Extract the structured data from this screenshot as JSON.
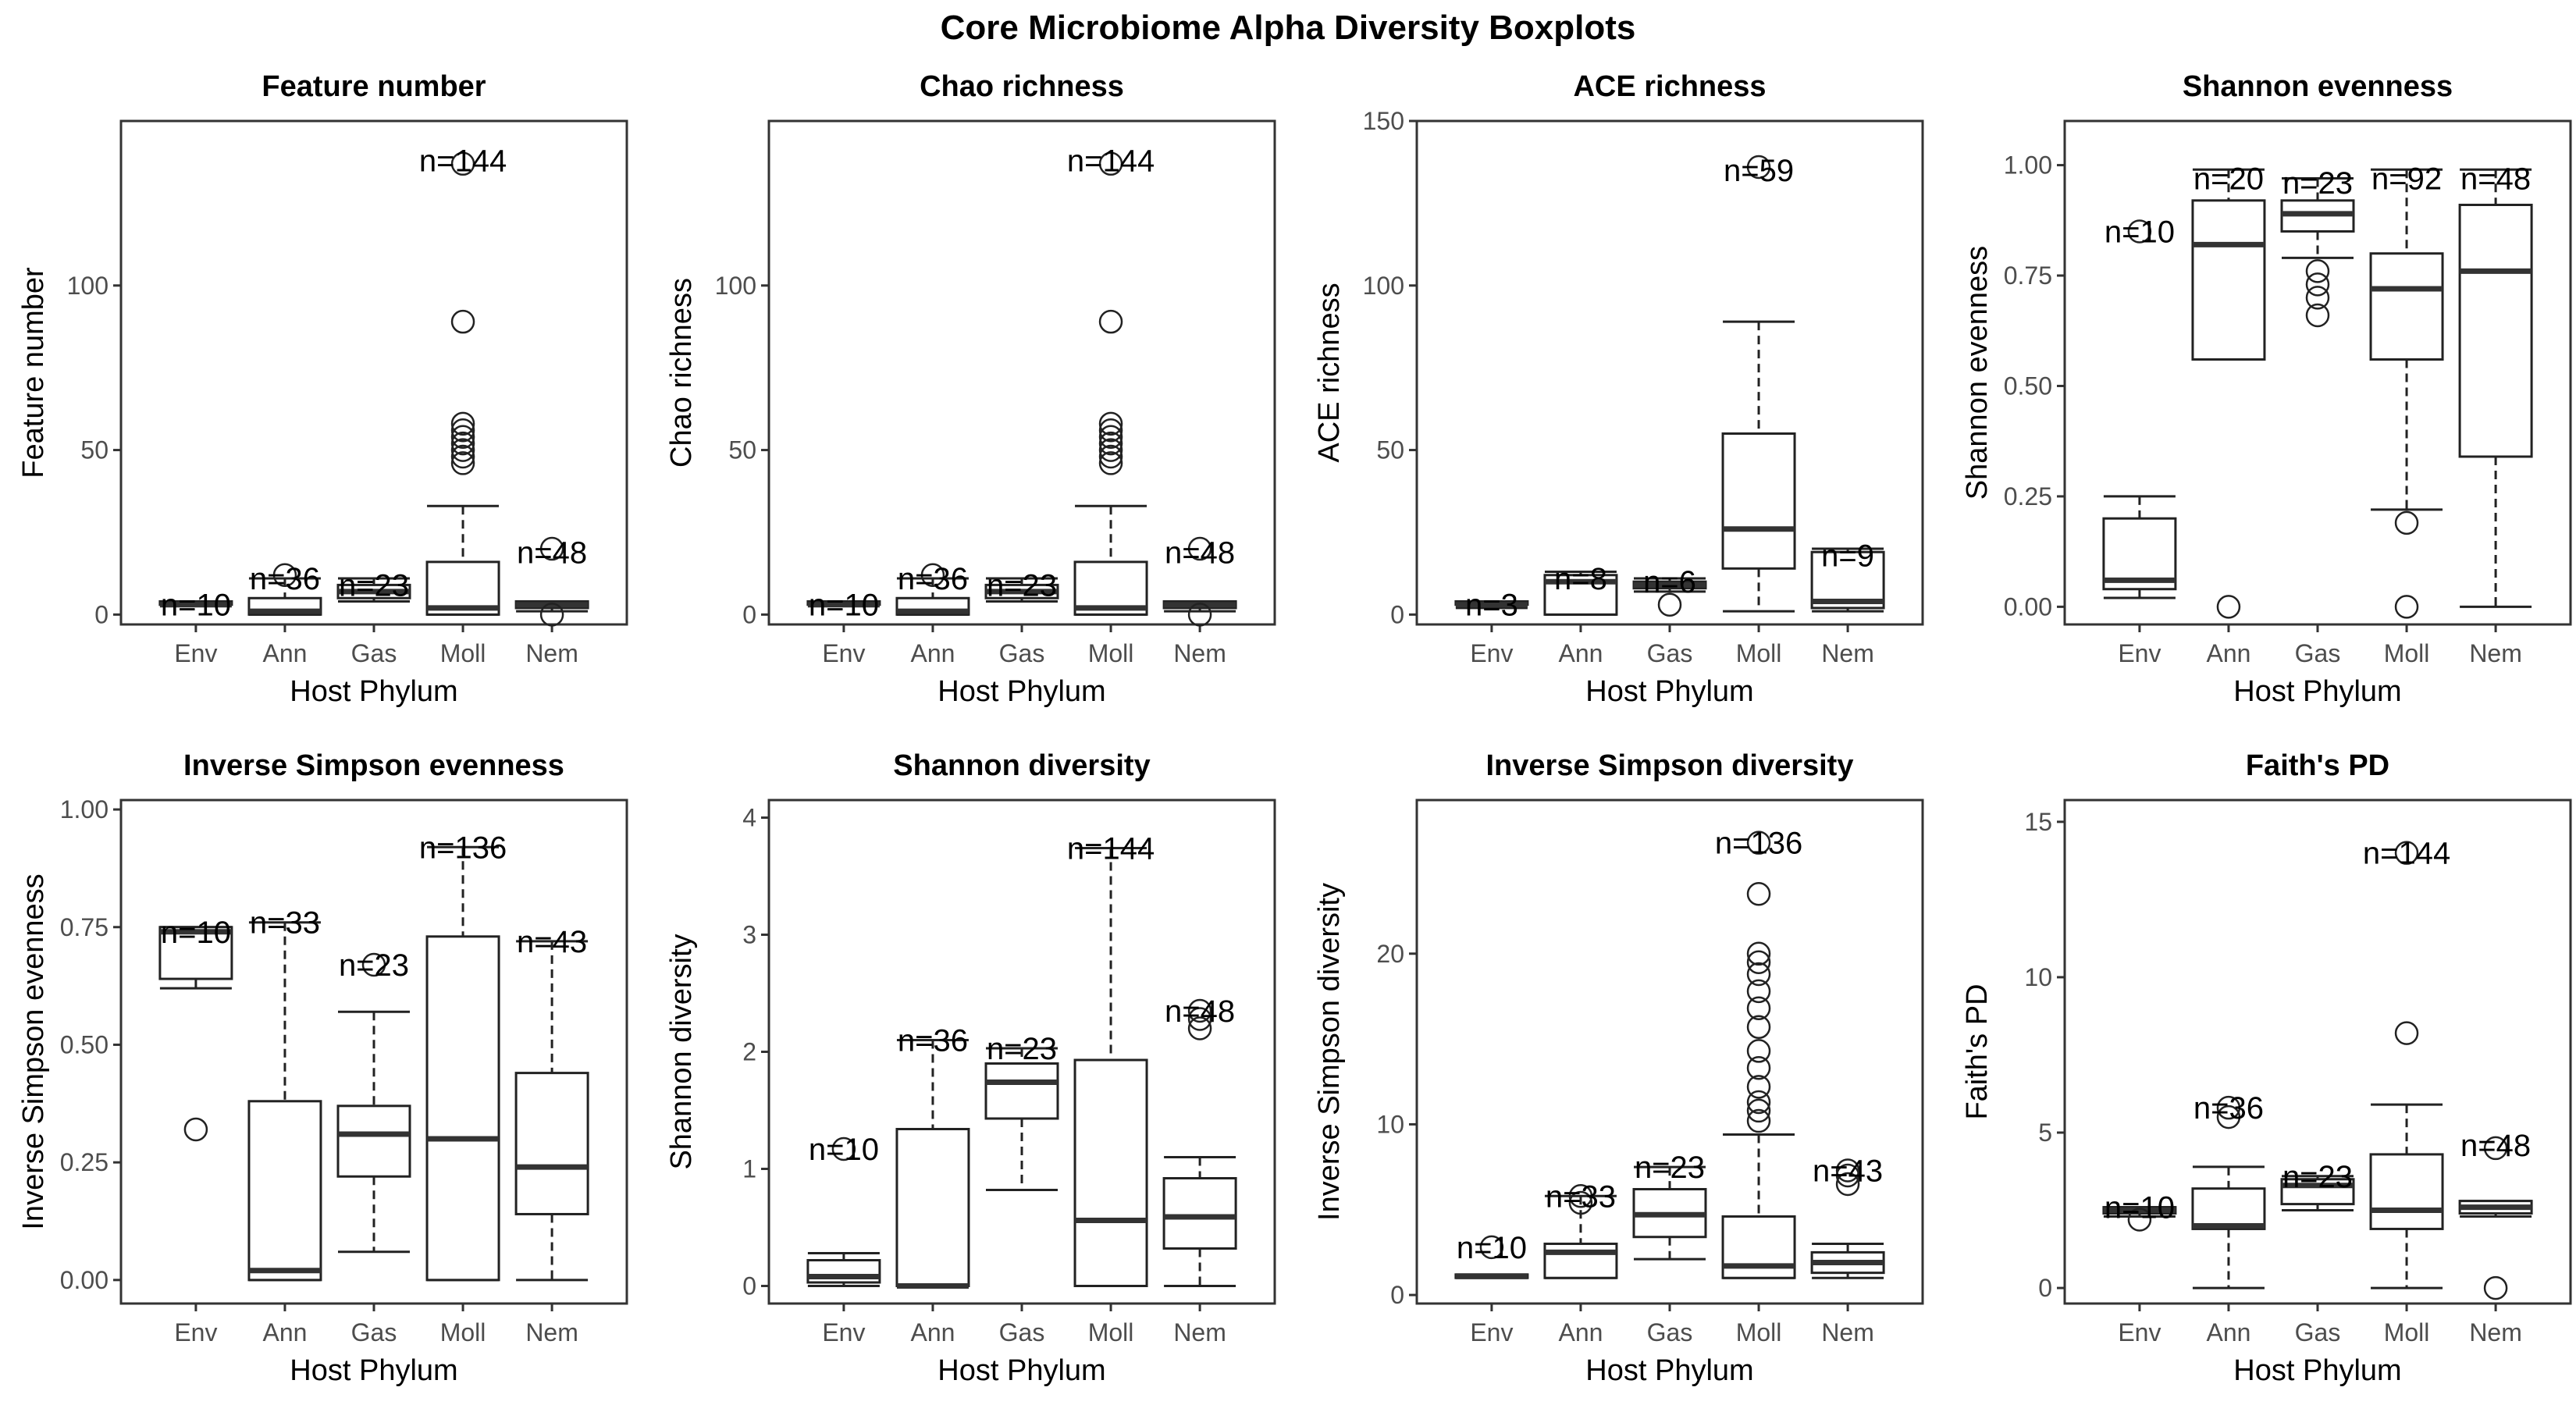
{
  "title": "Core Microbiome Alpha Diversity Boxplots",
  "chart_data": [
    {
      "type": "boxplot",
      "title": "Feature number",
      "xlabel": "Host Phylum",
      "ylabel": "Feature number",
      "ylim": [
        -3,
        150
      ],
      "yticks": [
        0,
        50,
        100
      ],
      "ytick_labels": [
        "0",
        "50",
        "100"
      ],
      "categories": [
        "Env",
        "Ann",
        "Gas",
        "Moll",
        "Nem"
      ],
      "boxes": [
        {
          "category": "Env",
          "n_label": "n=10",
          "n_y": 3,
          "min": 3,
          "q1": 3,
          "median": 3,
          "q3": 4,
          "max": 4,
          "outliers": []
        },
        {
          "category": "Ann",
          "n_label": "n=36",
          "n_y": 11,
          "min": 0,
          "q1": 0,
          "median": 1,
          "q3": 5,
          "max": 11,
          "outliers": [
            12
          ]
        },
        {
          "category": "Gas",
          "n_label": "n=23",
          "n_y": 9,
          "min": 4,
          "q1": 5,
          "median": 7,
          "q3": 9,
          "max": 11,
          "outliers": []
        },
        {
          "category": "Moll",
          "n_label": "n=144",
          "n_y": 138,
          "min": 0,
          "q1": 0,
          "median": 2,
          "q3": 16,
          "max": 33,
          "outliers": [
            46,
            48,
            50,
            52,
            54,
            56,
            58,
            89,
            137
          ]
        },
        {
          "category": "Nem",
          "n_label": "n=48",
          "n_y": 19,
          "min": 1,
          "q1": 2,
          "median": 3,
          "q3": 4,
          "max": 4,
          "outliers": [
            0,
            20
          ]
        }
      ]
    },
    {
      "type": "boxplot",
      "title": "Chao richness",
      "xlabel": "Host Phylum",
      "ylabel": "Chao richness",
      "ylim": [
        -3,
        150
      ],
      "yticks": [
        0,
        50,
        100
      ],
      "ytick_labels": [
        "0",
        "50",
        "100"
      ],
      "categories": [
        "Env",
        "Ann",
        "Gas",
        "Moll",
        "Nem"
      ],
      "boxes": [
        {
          "category": "Env",
          "n_label": "n=10",
          "n_y": 3,
          "min": 3,
          "q1": 3,
          "median": 3,
          "q3": 4,
          "max": 4,
          "outliers": []
        },
        {
          "category": "Ann",
          "n_label": "n=36",
          "n_y": 11,
          "min": 0,
          "q1": 0,
          "median": 1,
          "q3": 5,
          "max": 11,
          "outliers": [
            12
          ]
        },
        {
          "category": "Gas",
          "n_label": "n=23",
          "n_y": 9,
          "min": 4,
          "q1": 5,
          "median": 7,
          "q3": 9,
          "max": 11,
          "outliers": []
        },
        {
          "category": "Moll",
          "n_label": "n=144",
          "n_y": 138,
          "min": 0,
          "q1": 0,
          "median": 2,
          "q3": 16,
          "max": 33,
          "outliers": [
            46,
            48,
            50,
            52,
            54,
            56,
            58,
            89,
            137
          ]
        },
        {
          "category": "Nem",
          "n_label": "n=48",
          "n_y": 19,
          "min": 1,
          "q1": 2,
          "median": 3,
          "q3": 4,
          "max": 4,
          "outliers": [
            0,
            20
          ]
        }
      ]
    },
    {
      "type": "boxplot",
      "title": "ACE richness",
      "xlabel": "Host Phylum",
      "ylabel": "ACE richness",
      "ylim": [
        -3,
        150
      ],
      "yticks": [
        0,
        50,
        100,
        150
      ],
      "ytick_labels": [
        "0",
        "50",
        "100",
        "150"
      ],
      "categories": [
        "Env",
        "Ann",
        "Gas",
        "Moll",
        "Nem"
      ],
      "boxes": [
        {
          "category": "Env",
          "n_label": "n=3",
          "n_y": 3,
          "min": 2,
          "q1": 3,
          "median": 3,
          "q3": 4,
          "max": 4,
          "outliers": []
        },
        {
          "category": "Ann",
          "n_label": "n=8",
          "n_y": 11,
          "min": 0,
          "q1": 0,
          "median": 10,
          "q3": 12,
          "max": 13,
          "outliers": []
        },
        {
          "category": "Gas",
          "n_label": "n=6",
          "n_y": 10,
          "min": 7,
          "q1": 8,
          "median": 9,
          "q3": 10,
          "max": 11,
          "outliers": [
            3
          ]
        },
        {
          "category": "Moll",
          "n_label": "n=59",
          "n_y": 135,
          "min": 1,
          "q1": 14,
          "median": 26,
          "q3": 55,
          "max": 89,
          "outliers": [
            136
          ]
        },
        {
          "category": "Nem",
          "n_label": "n=9",
          "n_y": 18,
          "min": 1,
          "q1": 2,
          "median": 4,
          "q3": 19,
          "max": 20,
          "outliers": []
        }
      ]
    },
    {
      "type": "boxplot",
      "title": "Shannon evenness",
      "xlabel": "Host Phylum",
      "ylabel": "Shannon evenness",
      "ylim": [
        -0.04,
        1.1
      ],
      "yticks": [
        0,
        0.25,
        0.5,
        0.75,
        1.0
      ],
      "ytick_labels": [
        "0.00",
        "0.25",
        "0.50",
        "0.75",
        "1.00"
      ],
      "categories": [
        "Env",
        "Ann",
        "Gas",
        "Moll",
        "Nem"
      ],
      "boxes": [
        {
          "category": "Env",
          "n_label": "n=10",
          "n_y": 0.85,
          "min": 0.02,
          "q1": 0.04,
          "median": 0.06,
          "q3": 0.2,
          "max": 0.25,
          "outliers": [
            0.85
          ]
        },
        {
          "category": "Ann",
          "n_label": "n=20",
          "n_y": 0.97,
          "min": 0.56,
          "q1": 0.56,
          "median": 0.82,
          "q3": 0.92,
          "max": 0.99,
          "outliers": [
            0
          ]
        },
        {
          "category": "Gas",
          "n_label": "n=23",
          "n_y": 0.96,
          "min": 0.79,
          "q1": 0.85,
          "median": 0.89,
          "q3": 0.92,
          "max": 0.97,
          "outliers": [
            0.66,
            0.7,
            0.73,
            0.76
          ]
        },
        {
          "category": "Moll",
          "n_label": "n=92",
          "n_y": 0.97,
          "min": 0.22,
          "q1": 0.56,
          "median": 0.72,
          "q3": 0.8,
          "max": 0.99,
          "outliers": [
            0,
            0.19
          ]
        },
        {
          "category": "Nem",
          "n_label": "n=48",
          "n_y": 0.97,
          "min": 0,
          "q1": 0.34,
          "median": 0.76,
          "q3": 0.91,
          "max": 0.99,
          "outliers": []
        }
      ]
    },
    {
      "type": "boxplot",
      "title": "Inverse Simpson evenness",
      "xlabel": "Host Phylum",
      "ylabel": "Inverse Simpson evenness",
      "ylim": [
        -0.05,
        1.02
      ],
      "yticks": [
        0,
        0.25,
        0.5,
        0.75,
        1.0
      ],
      "ytick_labels": [
        "0.00",
        "0.25",
        "0.50",
        "0.75",
        "1.00"
      ],
      "categories": [
        "Env",
        "Ann",
        "Gas",
        "Moll",
        "Nem"
      ],
      "boxes": [
        {
          "category": "Env",
          "n_label": "n=10",
          "n_y": 0.74,
          "min": 0.62,
          "q1": 0.64,
          "median": 0.74,
          "q3": 0.75,
          "max": 0.75,
          "outliers": [
            0.32
          ]
        },
        {
          "category": "Ann",
          "n_label": "n=33",
          "n_y": 0.76,
          "min": 0,
          "q1": 0,
          "median": 0.02,
          "q3": 0.38,
          "max": 0.76,
          "outliers": []
        },
        {
          "category": "Gas",
          "n_label": "n=23",
          "n_y": 0.67,
          "min": 0.06,
          "q1": 0.22,
          "median": 0.31,
          "q3": 0.37,
          "max": 0.57,
          "outliers": [
            0.67
          ]
        },
        {
          "category": "Moll",
          "n_label": "n=136",
          "n_y": 0.92,
          "min": 0,
          "q1": 0,
          "median": 0.3,
          "q3": 0.73,
          "max": 0.92,
          "outliers": []
        },
        {
          "category": "Nem",
          "n_label": "n=43",
          "n_y": 0.72,
          "min": 0,
          "q1": 0.14,
          "median": 0.24,
          "q3": 0.44,
          "max": 0.72,
          "outliers": []
        }
      ]
    },
    {
      "type": "boxplot",
      "title": "Shannon diversity",
      "xlabel": "Host Phylum",
      "ylabel": "Shannon diversity",
      "ylim": [
        -0.15,
        4.15
      ],
      "yticks": [
        0,
        1,
        2,
        3,
        4
      ],
      "ytick_labels": [
        "0",
        "1",
        "2",
        "3",
        "4"
      ],
      "categories": [
        "Env",
        "Ann",
        "Gas",
        "Moll",
        "Nem"
      ],
      "boxes": [
        {
          "category": "Env",
          "n_label": "n=10",
          "n_y": 1.17,
          "min": 0,
          "q1": 0.03,
          "median": 0.08,
          "q3": 0.22,
          "max": 0.28,
          "outliers": [
            1.17
          ]
        },
        {
          "category": "Ann",
          "n_label": "n=36",
          "n_y": 2.1,
          "min": 0,
          "q1": 0,
          "median": 0,
          "q3": 1.34,
          "max": 2.1,
          "outliers": []
        },
        {
          "category": "Gas",
          "n_label": "n=23",
          "n_y": 2.03,
          "min": 0.82,
          "q1": 1.43,
          "median": 1.74,
          "q3": 1.9,
          "max": 2.03,
          "outliers": []
        },
        {
          "category": "Moll",
          "n_label": "n=144",
          "n_y": 3.74,
          "min": 0,
          "q1": 0,
          "median": 0.56,
          "q3": 1.93,
          "max": 3.74,
          "outliers": []
        },
        {
          "category": "Nem",
          "n_label": "n=48",
          "n_y": 2.35,
          "min": 0,
          "q1": 0.32,
          "median": 0.59,
          "q3": 0.92,
          "max": 1.1,
          "outliers": [
            2.2,
            2.28,
            2.35
          ]
        }
      ]
    },
    {
      "type": "boxplot",
      "title": "Inverse Simpson diversity",
      "xlabel": "Host Phylum",
      "ylabel": "Inverse Simpson diversity",
      "ylim": [
        -0.5,
        29
      ],
      "yticks": [
        0,
        10,
        20
      ],
      "ytick_labels": [
        "0",
        "10",
        "20"
      ],
      "categories": [
        "Env",
        "Ann",
        "Gas",
        "Moll",
        "Nem"
      ],
      "boxes": [
        {
          "category": "Env",
          "n_label": "n=10",
          "n_y": 2.8,
          "min": 1,
          "q1": 1,
          "median": 1.1,
          "q3": 1.2,
          "max": 1.2,
          "outliers": [
            2.8
          ]
        },
        {
          "category": "Ann",
          "n_label": "n=33",
          "n_y": 5.8,
          "min": 1,
          "q1": 1,
          "median": 2.5,
          "q3": 3,
          "max": 5.8,
          "outliers": [
            5.4,
            5.8
          ]
        },
        {
          "category": "Gas",
          "n_label": "n=23",
          "n_y": 7.5,
          "min": 2.1,
          "q1": 3.4,
          "median": 4.7,
          "q3": 6.2,
          "max": 7.5,
          "outliers": []
        },
        {
          "category": "Moll",
          "n_label": "n=136",
          "n_y": 26.5,
          "min": 1,
          "q1": 1,
          "median": 1.7,
          "q3": 4.6,
          "max": 9.4,
          "outliers": [
            10.2,
            10.8,
            11.3,
            12.2,
            13.3,
            14.3,
            15.7,
            16.8,
            17.8,
            18.8,
            19.5,
            20,
            23.5,
            26.5
          ]
        },
        {
          "category": "Nem",
          "n_label": "n=43",
          "n_y": 7.3,
          "min": 1,
          "q1": 1.3,
          "median": 1.9,
          "q3": 2.5,
          "max": 3,
          "outliers": [
            6.5,
            7,
            7.3
          ]
        }
      ]
    },
    {
      "type": "boxplot",
      "title": "Faith's PD",
      "xlabel": "Host Phylum",
      "ylabel": "Faith's PD",
      "ylim": [
        -0.5,
        15.7
      ],
      "yticks": [
        0,
        5,
        10,
        15
      ],
      "ytick_labels": [
        "0",
        "5",
        "10",
        "15"
      ],
      "categories": [
        "Env",
        "Ann",
        "Gas",
        "Moll",
        "Nem"
      ],
      "boxes": [
        {
          "category": "Env",
          "n_label": "n=10",
          "n_y": 2.6,
          "min": 2.3,
          "q1": 2.4,
          "median": 2.5,
          "q3": 2.6,
          "max": 2.6,
          "outliers": [
            2.2
          ]
        },
        {
          "category": "Ann",
          "n_label": "n=36",
          "n_y": 5.8,
          "min": 0,
          "q1": 1.9,
          "median": 2,
          "q3": 3.2,
          "max": 3.9,
          "outliers": [
            5.5,
            5.8
          ]
        },
        {
          "category": "Gas",
          "n_label": "n=23",
          "n_y": 3.6,
          "min": 2.5,
          "q1": 2.7,
          "median": 3.3,
          "q3": 3.5,
          "max": 3.6,
          "outliers": []
        },
        {
          "category": "Moll",
          "n_label": "n=144",
          "n_y": 14,
          "min": 0,
          "q1": 1.9,
          "median": 2.5,
          "q3": 4.3,
          "max": 5.9,
          "outliers": [
            8.2,
            14
          ]
        },
        {
          "category": "Nem",
          "n_label": "n=48",
          "n_y": 4.6,
          "min": 2.3,
          "q1": 2.4,
          "median": 2.6,
          "q3": 2.8,
          "max": 2.8,
          "outliers": [
            0,
            4.5
          ]
        }
      ]
    }
  ]
}
